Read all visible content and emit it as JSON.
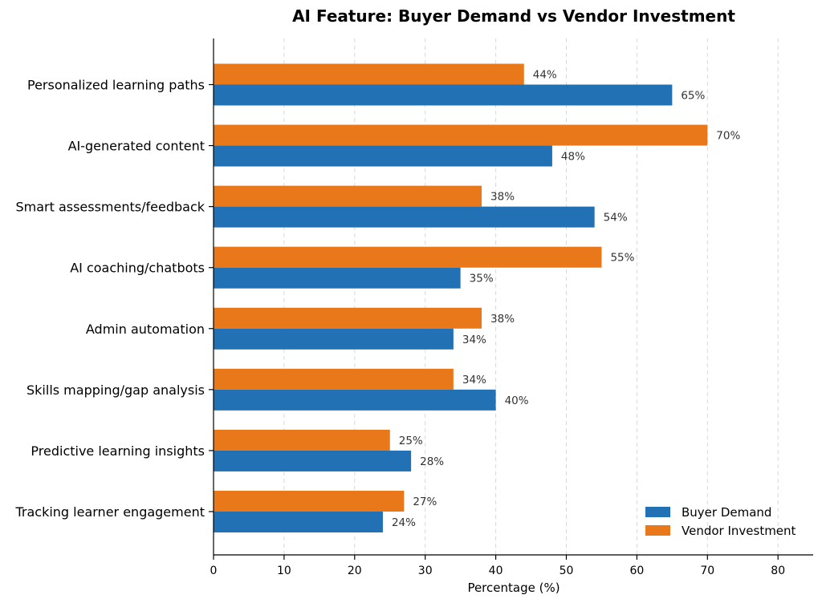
{
  "chart_data": {
    "type": "bar",
    "orientation": "horizontal",
    "title": "AI Feature: Buyer Demand vs Vendor Investment",
    "xlabel": "Percentage (%)",
    "ylabel": "",
    "xlim": [
      0,
      85
    ],
    "xticks": [
      0,
      10,
      20,
      30,
      40,
      50,
      60,
      70,
      80
    ],
    "grid": "x-dashed",
    "legend_position": "bottom-right",
    "categories": [
      "Personalized learning paths",
      "AI-generated content",
      "Smart assessments/feedback",
      "AI coaching/chatbots",
      "Admin automation",
      "Skills mapping/gap analysis",
      "Predictive learning insights",
      "Tracking learner engagement"
    ],
    "series": [
      {
        "name": "Buyer Demand",
        "color": "#2271b5",
        "values": [
          65,
          48,
          54,
          35,
          34,
          40,
          28,
          24
        ],
        "labels": [
          "65%",
          "48%",
          "54%",
          "35%",
          "34%",
          "40%",
          "28%",
          "24%"
        ]
      },
      {
        "name": "Vendor Investment",
        "color": "#e8781a",
        "values": [
          44,
          70,
          38,
          55,
          38,
          34,
          25,
          27
        ],
        "labels": [
          "44%",
          "70%",
          "38%",
          "55%",
          "38%",
          "34%",
          "25%",
          "27%"
        ]
      }
    ]
  }
}
